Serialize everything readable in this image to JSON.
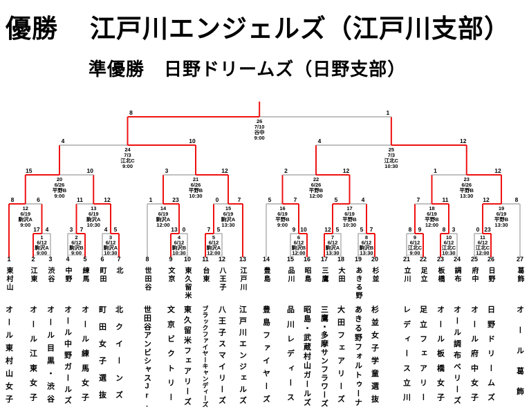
{
  "header": {
    "champion_label": "優勝",
    "champion_name": "江戸川エンジェルズ（江戸川支部）",
    "runnerup_label": "準優勝",
    "runnerup_name": "日野ドリームズ（日野支部）"
  },
  "colors": {
    "winner_line": "#ee1111",
    "loser_line": "#ababab",
    "box_border": "#b5b5b5",
    "text": "#000000"
  },
  "teams": [
    {
      "num": "1",
      "branch": "東村山",
      "name": "オール東村山女子"
    },
    {
      "num": "2",
      "branch": "江東",
      "name": "オール江東女子"
    },
    {
      "num": "3",
      "branch": "渋谷",
      "name": "オール目黒・渋谷"
    },
    {
      "num": "4",
      "branch": "中野",
      "name": "オール中野ガールズ"
    },
    {
      "num": "5",
      "branch": "練馬",
      "name": "オール練馬女子"
    },
    {
      "num": "6",
      "branch": "町田",
      "name": "町田女子選抜"
    },
    {
      "num": "7",
      "branch": "北",
      "name": "北クイーンズ"
    },
    {
      "num": "8",
      "branch": "世田谷",
      "name": "世田谷アンビシャスJr."
    },
    {
      "num": "9",
      "branch": "文京",
      "name": "文京ビクトリー"
    },
    {
      "num": "10",
      "branch": "東久留米",
      "name": "東久留米フェアリーズ"
    },
    {
      "num": "11",
      "branch": "台東",
      "name": "ブラックファイヤーキャンディーズ"
    },
    {
      "num": "12",
      "branch": "八王子",
      "name": "八王子スマイリーズ"
    },
    {
      "num": "13",
      "branch": "江戸川",
      "name": "江戸川エンジェルズ"
    },
    {
      "num": "14",
      "branch": "豊島",
      "name": "豊島ファイヤーズ"
    },
    {
      "num": "15",
      "branch": "品川",
      "name": "品川レディース"
    },
    {
      "num": "16",
      "branch": "昭島",
      "name": "昭島・武蔵村山ガールズ"
    },
    {
      "num": "17",
      "branch": "三鷹",
      "name": "三鷹・多摩サンフラワーズ"
    },
    {
      "num": "18",
      "branch": "大田",
      "name": "大田フェアリーズ"
    },
    {
      "num": "19",
      "branch": "あきる野",
      "name": "あきる野フォルトゥーナ"
    },
    {
      "num": "20",
      "branch": "杉並",
      "name": "杉並女子学童選抜"
    },
    {
      "num": "21",
      "branch": "立川",
      "name": "レディース立川"
    },
    {
      "num": "22",
      "branch": "足立",
      "name": "足立フェアリー"
    },
    {
      "num": "23",
      "branch": "板橋",
      "name": "オール板橋女子"
    },
    {
      "num": "24",
      "branch": "調布",
      "name": "オール調布ベリーズ"
    },
    {
      "num": "25",
      "branch": "府中",
      "name": "オール府中女子"
    },
    {
      "num": "26",
      "branch": "日野",
      "name": "日野ドリームズ"
    },
    {
      "num": "27",
      "branch": "葛飾",
      "name": "オール葛飾"
    }
  ],
  "matches": [
    {
      "no": 1,
      "round": "r1",
      "date": "6/12",
      "venue": "駒沢A",
      "time": "9:00",
      "left": "T2",
      "right": "T3",
      "score_left": "17",
      "score_right": "4",
      "winner": "L"
    },
    {
      "no": 2,
      "round": "r1",
      "date": "6/12",
      "venue": "駒沢B",
      "time": "9:00",
      "left": "T4",
      "right": "T5",
      "score_left": "3",
      "score_right": "7",
      "winner": "R"
    },
    {
      "no": 3,
      "round": "r1",
      "date": "6/12",
      "venue": "駒沢A",
      "time": "10:30",
      "left": "T6",
      "right": "T7",
      "score_left": "4",
      "score_right": "5",
      "winner": "R"
    },
    {
      "no": 4,
      "round": "r1",
      "date": "6/12",
      "venue": "駒沢B",
      "time": "10:30",
      "left": "T9",
      "right": "T10",
      "score_left": "13",
      "score_right": "0",
      "winner": "L"
    },
    {
      "no": 5,
      "round": "r1",
      "date": "6/12",
      "venue": "駒沢A",
      "time": "12:00",
      "left": "T11",
      "right": "T12",
      "score_left": "7",
      "score_right": "5",
      "winner": "L"
    },
    {
      "no": 6,
      "round": "r1",
      "date": "6/12",
      "venue": "駒沢B",
      "time": "12:00",
      "left": "T15",
      "right": "T16",
      "score_left": "9",
      "score_right": "10",
      "winner": "R"
    },
    {
      "no": 7,
      "round": "r1",
      "date": "6/12",
      "venue": "駒沢A",
      "time": "13:30",
      "left": "T17",
      "right": "T18",
      "score_left": "12",
      "score_right": "5",
      "winner": "L"
    },
    {
      "no": 8,
      "round": "r1",
      "date": "6/12",
      "venue": "駒沢B",
      "time": "13:30",
      "left": "T19",
      "right": "T20",
      "score_left": "5",
      "score_right": "7",
      "winner": "R"
    },
    {
      "no": 9,
      "round": "r1",
      "date": "6/12",
      "venue": "江北C",
      "time": "9:00",
      "left": "T21",
      "right": "T22",
      "score_left": "8",
      "score_right": "9",
      "winner": "R"
    },
    {
      "no": 10,
      "round": "r1",
      "date": "6/12",
      "venue": "江北C",
      "time": "10:30",
      "left": "T23",
      "right": "T24",
      "score_left": "8",
      "score_right": "3",
      "winner": "L"
    },
    {
      "no": 11,
      "round": "r1",
      "date": "6/12",
      "venue": "江北C",
      "time": "12:00",
      "left": "T25",
      "right": "T26",
      "score_left": "0",
      "score_right": "23",
      "winner": "R"
    },
    {
      "no": 12,
      "round": "r2",
      "date": "6/19",
      "venue": "駒沢A",
      "time": "9:00",
      "left": "T1",
      "right": "M1",
      "score_left": "8",
      "score_right": "6",
      "winner": "L"
    },
    {
      "no": 13,
      "round": "r2",
      "date": "6/19",
      "venue": "駒沢A",
      "time": "10:30",
      "left": "M2",
      "right": "M3",
      "score_left": "11",
      "score_right": "12",
      "winner": "R"
    },
    {
      "no": 14,
      "round": "r2",
      "date": "6/19",
      "venue": "駒沢A",
      "time": "12:00",
      "left": "T8",
      "right": "M4",
      "score_left": "1",
      "score_right": "23",
      "winner": "R"
    },
    {
      "no": 15,
      "round": "r2",
      "date": "6/19",
      "venue": "駒沢A",
      "time": "13:30",
      "left": "M5",
      "right": "T13",
      "score_left": "0",
      "score_right": "7",
      "winner": "R"
    },
    {
      "no": 16,
      "round": "r2",
      "date": "6/19",
      "venue": "平野B",
      "time": "9:00",
      "left": "T14",
      "right": "M6",
      "score_left": "5",
      "score_right": "7",
      "winner": "R"
    },
    {
      "no": 17,
      "round": "r2",
      "date": "6/19",
      "venue": "平野B",
      "time": "10:30",
      "left": "M7",
      "right": "M8",
      "score_left": "5",
      "score_right": "4",
      "winner": "L"
    },
    {
      "no": 18,
      "round": "r2",
      "date": "6/19",
      "venue": "平野B",
      "time": "12:00",
      "left": "M9",
      "right": "M10",
      "score_left": "7",
      "score_right": "11",
      "winner": "R"
    },
    {
      "no": 19,
      "round": "r2",
      "date": "6/19",
      "venue": "平野B",
      "time": "13:30",
      "left": "M11",
      "right": "T27",
      "score_left": "12",
      "score_right": "8",
      "winner": "L"
    },
    {
      "no": 20,
      "round": "qf",
      "date": "6/26",
      "venue": "平野B",
      "time": "9:00",
      "left": "M12",
      "right": "M13",
      "score_left": "15",
      "score_right": "10",
      "winner": "L"
    },
    {
      "no": 21,
      "round": "qf",
      "date": "6/26",
      "venue": "平野B",
      "time": "10:30",
      "left": "M14",
      "right": "M15",
      "score_left": "3",
      "score_right": "12",
      "winner": "R"
    },
    {
      "no": 22,
      "round": "qf",
      "date": "6/26",
      "venue": "平野B",
      "time": "12:00",
      "left": "M16",
      "right": "M17",
      "score_left": "2",
      "score_right": "12",
      "winner": "R"
    },
    {
      "no": 23,
      "round": "qf",
      "date": "6/26",
      "venue": "平野B",
      "time": "13:30",
      "left": "M18",
      "right": "M19",
      "score_left": "1",
      "score_right": "12",
      "winner": "R"
    },
    {
      "no": 24,
      "round": "sf",
      "date": "7/3",
      "venue": "江北C",
      "time": "9:00",
      "left": "M20",
      "right": "M21",
      "score_left": "4",
      "score_right": "10",
      "winner": "R"
    },
    {
      "no": 25,
      "round": "sf",
      "date": "7/3",
      "venue": "江北C",
      "time": "10:30",
      "left": "M22",
      "right": "M23",
      "score_left": "4",
      "score_right": "12",
      "winner": "R"
    },
    {
      "no": 26,
      "round": "f",
      "date": "7/10",
      "venue": "谷中",
      "time": "9:00",
      "left": "M24",
      "right": "M25",
      "score_left": "8",
      "score_right": "1",
      "winner": "L"
    }
  ]
}
